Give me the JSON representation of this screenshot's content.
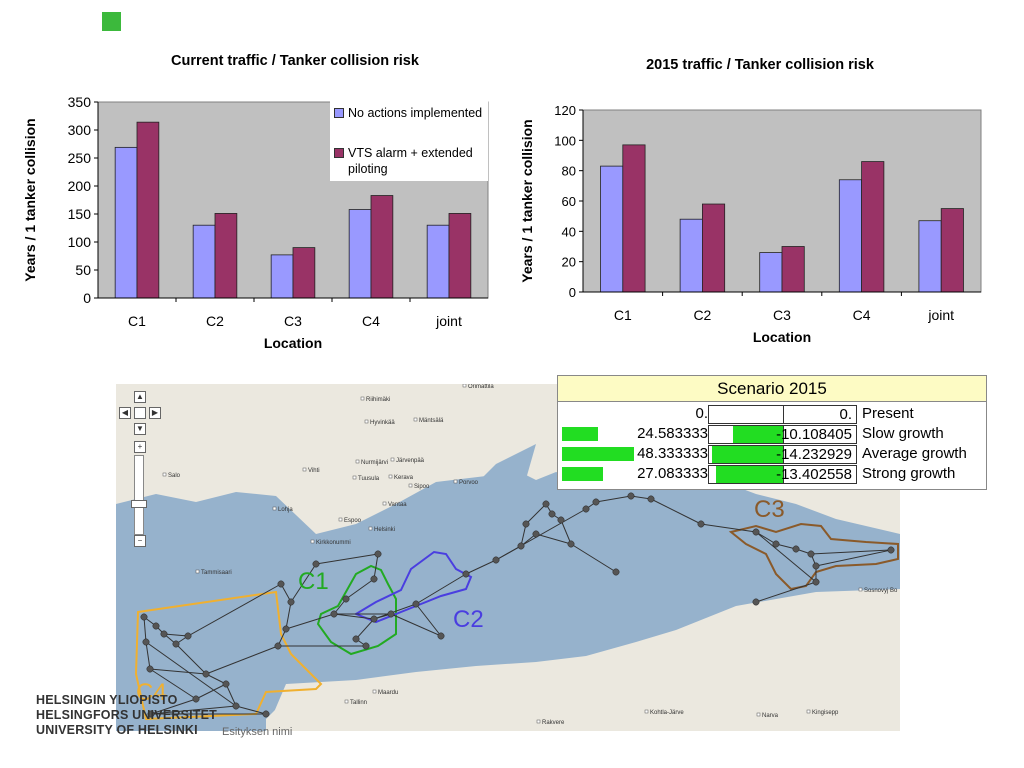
{
  "header": {
    "accent_color": "#3cb93c"
  },
  "chart_data": [
    {
      "type": "bar",
      "title": "Current traffic / Tanker collision risk",
      "xlabel": "Location",
      "ylabel": "Years / 1 tanker collision",
      "categories": [
        "C1",
        "C2",
        "C3",
        "C4",
        "joint"
      ],
      "ylim": [
        0,
        350
      ],
      "yticks": [
        0,
        50,
        100,
        150,
        200,
        250,
        300,
        350
      ],
      "grid": false,
      "legend_position": "top-right",
      "series": [
        {
          "name": "No actions implemented",
          "color": "#9999ff",
          "values": [
            269,
            130,
            77,
            158,
            130
          ]
        },
        {
          "name": "VTS alarm + extended piloting",
          "color": "#993366",
          "values": [
            314,
            151,
            90,
            183,
            151
          ]
        }
      ]
    },
    {
      "type": "bar",
      "title": "2015 traffic / Tanker collision risk",
      "xlabel": "Location",
      "ylabel": "Years / 1 tanker collision",
      "categories": [
        "C1",
        "C2",
        "C3",
        "C4",
        "joint"
      ],
      "ylim": [
        0,
        120
      ],
      "yticks": [
        0,
        20,
        40,
        60,
        80,
        100,
        120
      ],
      "grid": false,
      "series": [
        {
          "color": "#9999ff",
          "values": [
            83,
            48,
            26,
            74,
            47
          ]
        },
        {
          "color": "#993366",
          "values": [
            97,
            58,
            30,
            86,
            55
          ]
        }
      ]
    }
  ],
  "legend": {
    "items": [
      {
        "label": "No actions implemented",
        "color": "#9999ff"
      },
      {
        "label": "VTS alarm + extended\npiloting",
        "color": "#993366"
      }
    ]
  },
  "scenario": {
    "title": "Scenario 2015",
    "rows": [
      {
        "value": "0.",
        "delta": "0.",
        "label": "Present",
        "bar_fraction": 0.0,
        "delta_fraction": 0.0
      },
      {
        "value": "24.583333",
        "delta": "-10.108405",
        "label": "Slow growth",
        "bar_fraction": 0.24,
        "delta_fraction": 0.68
      },
      {
        "value": "48.333333",
        "delta": "-14.232929",
        "label": "Average growth",
        "bar_fraction": 0.48,
        "delta_fraction": 0.96
      },
      {
        "value": "27.083333",
        "delta": "-13.402558",
        "label": "Strong growth",
        "bar_fraction": 0.27,
        "delta_fraction": 0.9
      }
    ]
  },
  "map": {
    "sea_color": "#96b2cc",
    "land_color": "#ebe8df",
    "places": [
      "Orimattila",
      "Riihimäki",
      "Hyvinkää",
      "Mäntsälä",
      "Nurmijärvi",
      "Järvenpää",
      "Tuusula",
      "Kerava",
      "Sipoo",
      "Porvoo",
      "Vantaa",
      "Salo",
      "Vihti",
      "Lohja",
      "Espoo",
      "Helsinki",
      "Kirkkonummi",
      "Tammisaari",
      "Sosnovyj Bo",
      "Maardu",
      "Tallinn",
      "Kohtla-Järve",
      "Narva",
      "Kingisepp",
      "Rakvere"
    ],
    "areas": [
      {
        "label": "C1",
        "color": "#22aa22"
      },
      {
        "label": "C2",
        "color": "#4a3ee0"
      },
      {
        "label": "C3",
        "color": "#8a5a2a"
      },
      {
        "label": "C4",
        "color": "#f0b030"
      }
    ]
  },
  "footer": {
    "logo_lines": [
      "HELSINGIN YLIOPISTO",
      "HELSINGFORS UNIVERSITET",
      "UNIVERSITY OF HELSINKI"
    ],
    "presentation_title": "Esityksen nimi"
  }
}
